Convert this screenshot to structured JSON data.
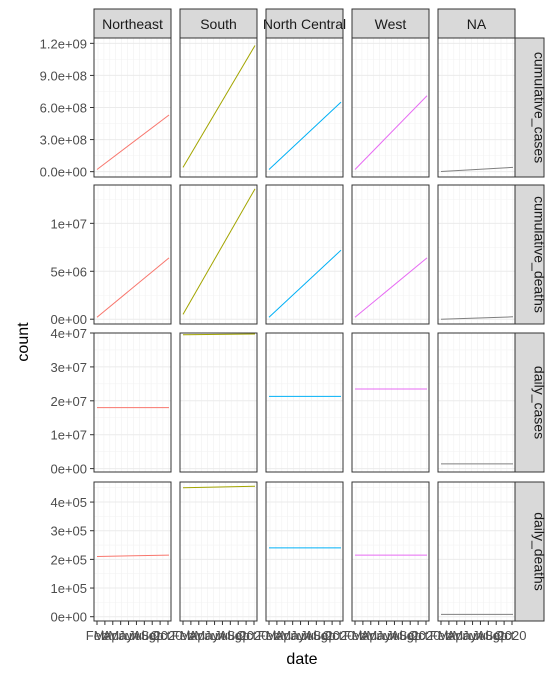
{
  "chart_data": {
    "type": "line",
    "xlabel": "date",
    "ylabel": "count",
    "columns": [
      {
        "label": "Northeast",
        "color": "#F8766D"
      },
      {
        "label": "South",
        "color": "#A3A500"
      },
      {
        "label": "North Central",
        "color": "#00B0F6"
      },
      {
        "label": "West",
        "color": "#E76BF3"
      },
      {
        "label": "NA",
        "color": "#7F7F7F"
      }
    ],
    "rows": [
      {
        "label": "cumulative_cases",
        "ylim": [
          -50000000.0,
          1250000000.0
        ],
        "ticks": [
          0,
          300000000.0,
          600000000.0,
          900000000.0,
          1200000000.0
        ],
        "tick_labels": [
          "0.0e+00",
          "3.0e+08",
          "6.0e+08",
          "9.0e+08",
          "1.2e+09"
        ],
        "series": [
          {
            "start": 20000000.0,
            "end": 530000000.0
          },
          {
            "start": 40000000.0,
            "end": 1180000000.0
          },
          {
            "start": 20000000.0,
            "end": 650000000.0
          },
          {
            "start": 20000000.0,
            "end": 710000000.0
          },
          {
            "start": 1000000.0,
            "end": 40000000.0
          }
        ]
      },
      {
        "label": "cumulative_deaths",
        "ylim": [
          -500000,
          14000000
        ],
        "ticks": [
          0,
          5000000.0,
          10000000.0
        ],
        "tick_labels": [
          "0e+00",
          "5e+06",
          "1e+07"
        ],
        "series": [
          {
            "start": 200000.0,
            "end": 6400000.0
          },
          {
            "start": 500000.0,
            "end": 13600000.0
          },
          {
            "start": 200000.0,
            "end": 7200000.0
          },
          {
            "start": 200000.0,
            "end": 6400000.0
          },
          {
            "start": 0,
            "end": 250000.0
          }
        ]
      },
      {
        "label": "daily_cases",
        "ylim": [
          -1000000,
          40000000
        ],
        "ticks": [
          0,
          10000000.0,
          20000000.0,
          30000000.0,
          40000000.0
        ],
        "tick_labels": [
          "0e+00",
          "1e+07",
          "2e+07",
          "3e+07",
          "4e+07"
        ],
        "series": [
          {
            "start": 18000000.0,
            "end": 18000000.0
          },
          {
            "start": 39500000.0,
            "end": 39700000.0
          },
          {
            "start": 21300000.0,
            "end": 21300000.0
          },
          {
            "start": 23500000.0,
            "end": 23500000.0
          },
          {
            "start": 1400000.0,
            "end": 1400000.0
          }
        ]
      },
      {
        "label": "daily_deaths",
        "ylim": [
          -15000,
          470000
        ],
        "ticks": [
          0,
          100000.0,
          200000.0,
          300000.0,
          400000.0
        ],
        "tick_labels": [
          "0e+00",
          "1e+05",
          "2e+05",
          "3e+05",
          "4e+05"
        ],
        "series": [
          {
            "start": 210000.0,
            "end": 215000.0
          },
          {
            "start": 450000.0,
            "end": 455000.0
          },
          {
            "start": 240000.0,
            "end": 240000.0
          },
          {
            "start": 215000.0,
            "end": 215000.0
          },
          {
            "start": 8000.0,
            "end": 8000.0
          }
        ]
      }
    ],
    "x_tick_labels": [
      "Feb",
      "Mar",
      "Apr",
      "May",
      "Jun",
      "Jul",
      "Aug",
      "Sep",
      "Oct",
      "2020"
    ]
  }
}
